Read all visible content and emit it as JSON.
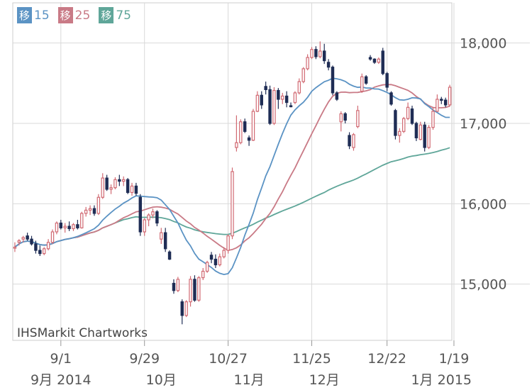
{
  "legend": [
    {
      "badge": "移",
      "period": "15",
      "color": "#5b93c4"
    },
    {
      "badge": "移",
      "period": "25",
      "color": "#c97a86"
    },
    {
      "badge": "移",
      "period": "75",
      "color": "#5fa699"
    }
  ],
  "credit": "IHSMarkit Chartworks",
  "colors": {
    "up": "#d16a73",
    "down": "#1f2d55",
    "ma15": "#5b93c4",
    "ma25": "#c97a86",
    "ma75": "#5fa699",
    "grid": "#d9d9d9"
  },
  "chart_data": {
    "type": "candlestick",
    "y_ticks": [
      {
        "value": 15000,
        "label": "15,000"
      },
      {
        "value": 16000,
        "label": "16,000"
      },
      {
        "value": 17000,
        "label": "17,000"
      },
      {
        "value": 18000,
        "label": "18,000"
      }
    ],
    "ylim": [
      14300,
      18500
    ],
    "x_ticks": [
      {
        "i": 11,
        "label": "9/1"
      },
      {
        "i": 31,
        "label": "9/29"
      },
      {
        "i": 51,
        "label": "10/27"
      },
      {
        "i": 71,
        "label": "11/25"
      },
      {
        "i": 89,
        "label": "12/22"
      },
      {
        "i": 105,
        "label": "1/19"
      }
    ],
    "month_labels": [
      {
        "i": 11,
        "label": "9月 2014"
      },
      {
        "i": 35,
        "label": "10月"
      },
      {
        "i": 56,
        "label": "11月"
      },
      {
        "i": 74,
        "label": "12月"
      },
      {
        "i": 102,
        "label": "1月 2015"
      }
    ],
    "candles": [
      [
        15450,
        15520,
        15400,
        15460
      ],
      [
        15520,
        15560,
        15480,
        15540
      ],
      [
        15560,
        15600,
        15520,
        15580
      ],
      [
        15600,
        15640,
        15540,
        15560
      ],
      [
        15560,
        15600,
        15480,
        15500
      ],
      [
        15500,
        15540,
        15380,
        15420
      ],
      [
        15420,
        15480,
        15350,
        15380
      ],
      [
        15380,
        15460,
        15360,
        15440
      ],
      [
        15440,
        15560,
        15420,
        15520
      ],
      [
        15520,
        15680,
        15500,
        15650
      ],
      [
        15650,
        15780,
        15620,
        15760
      ],
      [
        15760,
        15800,
        15680,
        15700
      ],
      [
        15700,
        15760,
        15640,
        15720
      ],
      [
        15720,
        15780,
        15660,
        15690
      ],
      [
        15690,
        15760,
        15660,
        15740
      ],
      [
        15740,
        15800,
        15680,
        15700
      ],
      [
        15700,
        15900,
        15690,
        15880
      ],
      [
        15880,
        15960,
        15840,
        15920
      ],
      [
        15920,
        15980,
        15860,
        15940
      ],
      [
        15940,
        15980,
        15850,
        15880
      ],
      [
        15880,
        16120,
        15860,
        16080
      ],
      [
        16080,
        16380,
        16060,
        16320
      ],
      [
        16320,
        16360,
        16160,
        16180
      ],
      [
        16180,
        16240,
        16120,
        16200
      ],
      [
        16200,
        16330,
        16180,
        16300
      ],
      [
        16300,
        16360,
        16220,
        16280
      ],
      [
        16280,
        16340,
        16220,
        16300
      ],
      [
        16300,
        16320,
        16120,
        16140
      ],
      [
        16140,
        16260,
        16100,
        16220
      ],
      [
        16220,
        16260,
        16100,
        16130
      ],
      [
        16080,
        16120,
        15600,
        15650
      ],
      [
        15650,
        15820,
        15600,
        15800
      ],
      [
        15800,
        15880,
        15720,
        15860
      ],
      [
        15860,
        15940,
        15820,
        15900
      ],
      [
        15900,
        15920,
        15720,
        15760
      ],
      [
        15560,
        15700,
        15500,
        15640
      ],
      [
        15640,
        15700,
        15400,
        15440
      ],
      [
        15400,
        15420,
        15300,
        15310
      ],
      [
        15010,
        15060,
        14880,
        14920
      ],
      [
        14920,
        15090,
        14900,
        15060
      ],
      [
        14780,
        14810,
        14500,
        14610
      ],
      [
        14610,
        14800,
        14590,
        14780
      ],
      [
        14780,
        15100,
        14720,
        15060
      ],
      [
        15060,
        15110,
        14780,
        14800
      ],
      [
        14800,
        15100,
        14780,
        15080
      ],
      [
        15080,
        15200,
        15050,
        15160
      ],
      [
        15160,
        15290,
        15140,
        15270
      ],
      [
        15360,
        15400,
        15260,
        15310
      ],
      [
        15310,
        15370,
        15200,
        15240
      ],
      [
        15240,
        15380,
        15220,
        15340
      ],
      [
        15340,
        15460,
        15320,
        15420
      ],
      [
        15420,
        15620,
        15380,
        15600
      ],
      [
        15600,
        16450,
        15560,
        16400
      ],
      [
        16700,
        17100,
        16650,
        16760
      ],
      [
        16760,
        17050,
        16740,
        17020
      ],
      [
        17020,
        17060,
        16880,
        16900
      ],
      [
        16820,
        16850,
        16720,
        16790
      ],
      [
        16790,
        17180,
        16780,
        17150
      ],
      [
        17150,
        17400,
        17140,
        17350
      ],
      [
        17350,
        17400,
        17180,
        17230
      ],
      [
        17460,
        17520,
        17360,
        17420
      ],
      [
        17420,
        17470,
        16980,
        17000
      ],
      [
        17000,
        17450,
        16980,
        17410
      ],
      [
        17410,
        17440,
        17180,
        17300
      ],
      [
        17300,
        17380,
        17240,
        17340
      ],
      [
        17340,
        17400,
        17200,
        17260
      ],
      [
        17220,
        17260,
        17200,
        17210
      ],
      [
        17260,
        17400,
        17240,
        17380
      ],
      [
        17380,
        17560,
        17360,
        17520
      ],
      [
        17520,
        17700,
        17500,
        17680
      ],
      [
        17680,
        17860,
        17660,
        17820
      ],
      [
        17820,
        17950,
        17800,
        17920
      ],
      [
        17920,
        17960,
        17800,
        17830
      ],
      [
        17830,
        18020,
        17810,
        17900
      ],
      [
        17900,
        17990,
        17740,
        17780
      ],
      [
        17760,
        17800,
        17660,
        17700
      ],
      [
        17700,
        17720,
        17350,
        17380
      ],
      [
        17380,
        17400,
        17280,
        17300
      ],
      [
        17020,
        17150,
        16900,
        17120
      ],
      [
        17120,
        17140,
        17000,
        17040
      ],
      [
        16850,
        16890,
        16680,
        16720
      ],
      [
        16700,
        16880,
        16660,
        16860
      ],
      [
        16960,
        17220,
        16940,
        17160
      ],
      [
        17400,
        17620,
        17380,
        17580
      ],
      [
        17580,
        17600,
        17480,
        17500
      ],
      [
        17820,
        17850,
        17780,
        17800
      ],
      [
        17800,
        17810,
        17740,
        17760
      ],
      [
        17760,
        17820,
        17740,
        17800
      ],
      [
        17900,
        17940,
        17600,
        17620
      ],
      [
        17620,
        17640,
        17400,
        17450
      ],
      [
        17380,
        17400,
        17220,
        17240
      ],
      [
        17160,
        17180,
        16800,
        16850
      ],
      [
        16850,
        16940,
        16760,
        16900
      ],
      [
        16900,
        17080,
        16880,
        17060
      ],
      [
        17060,
        17260,
        17040,
        17200
      ],
      [
        17180,
        17220,
        16980,
        17000
      ],
      [
        17000,
        17020,
        16780,
        16820
      ],
      [
        16800,
        17020,
        16790,
        16980
      ],
      [
        16980,
        17020,
        16650,
        16700
      ],
      [
        16700,
        16980,
        16680,
        16950
      ],
      [
        16950,
        17200,
        16920,
        17150
      ],
      [
        17150,
        17360,
        17140,
        17300
      ],
      [
        17300,
        17330,
        17240,
        17290
      ],
      [
        17290,
        17320,
        17200,
        17230
      ],
      [
        17230,
        17480,
        17210,
        17450
      ]
    ]
  }
}
